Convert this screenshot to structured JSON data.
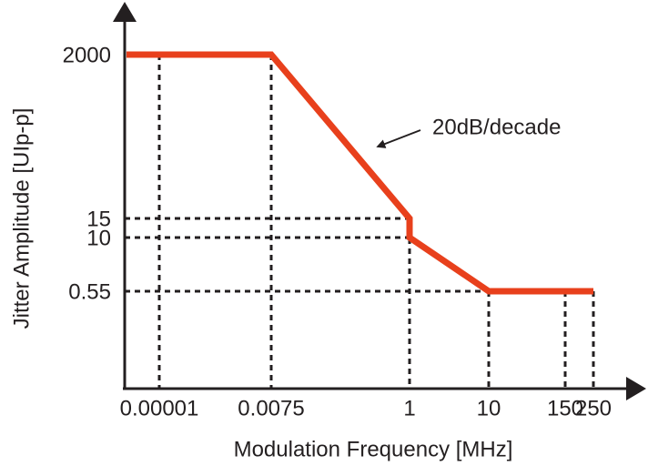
{
  "chart_data": {
    "type": "line",
    "xlabel": "Modulation Frequency [MHz]",
    "ylabel": "Jitter Amplitude [UIp-p]",
    "annotation": "20dB/decade",
    "x": [
      1e-05,
      0.0075,
      1,
      1,
      10,
      250
    ],
    "series": [
      {
        "color": "#e8401c",
        "values": [
          2000,
          2000,
          15,
          10,
          0.55,
          0.55
        ]
      }
    ],
    "xticks": [
      1e-05,
      0.0075,
      1,
      10,
      150,
      250
    ],
    "yticks": [
      0.55,
      10,
      15,
      2000
    ]
  }
}
